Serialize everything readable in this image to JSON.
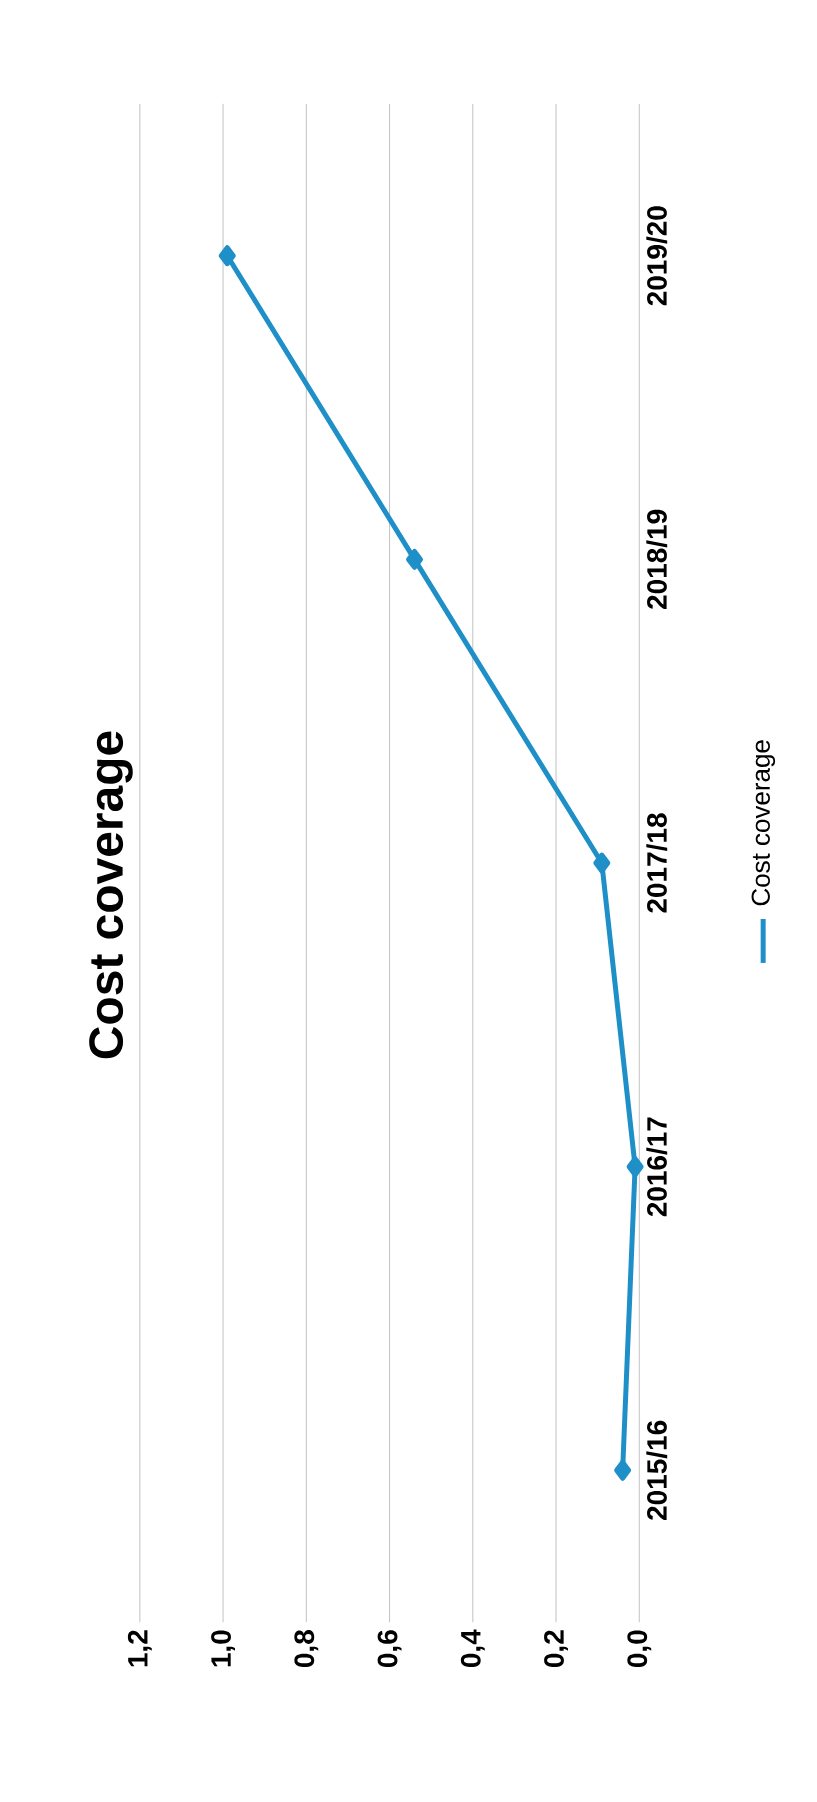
{
  "chart_data": {
    "type": "line",
    "orientation": "horizontal",
    "title": "Cost coverage",
    "categories": [
      "2019/20",
      "2018/19",
      "2017/18",
      "2016/17",
      "2015/16"
    ],
    "series": [
      {
        "name": "Cost coverage",
        "color": "#1f8fc8",
        "values": [
          0.99,
          0.54,
          0.09,
          0.01,
          0.04
        ]
      }
    ],
    "xlim": [
      1.2,
      0
    ],
    "xticks": [
      {
        "value": 0,
        "label": "0,0"
      },
      {
        "value": 0.2,
        "label": "0,2"
      },
      {
        "value": 0.4,
        "label": "0,4"
      },
      {
        "value": 0.6,
        "label": "0,6"
      },
      {
        "value": 0.8,
        "label": "0,8"
      },
      {
        "value": 1.0,
        "label": "1,0"
      },
      {
        "value": 1.2,
        "label": "1,2"
      }
    ],
    "grid": "x",
    "legend": "right",
    "marker": "diamond",
    "line_style": "solid"
  }
}
